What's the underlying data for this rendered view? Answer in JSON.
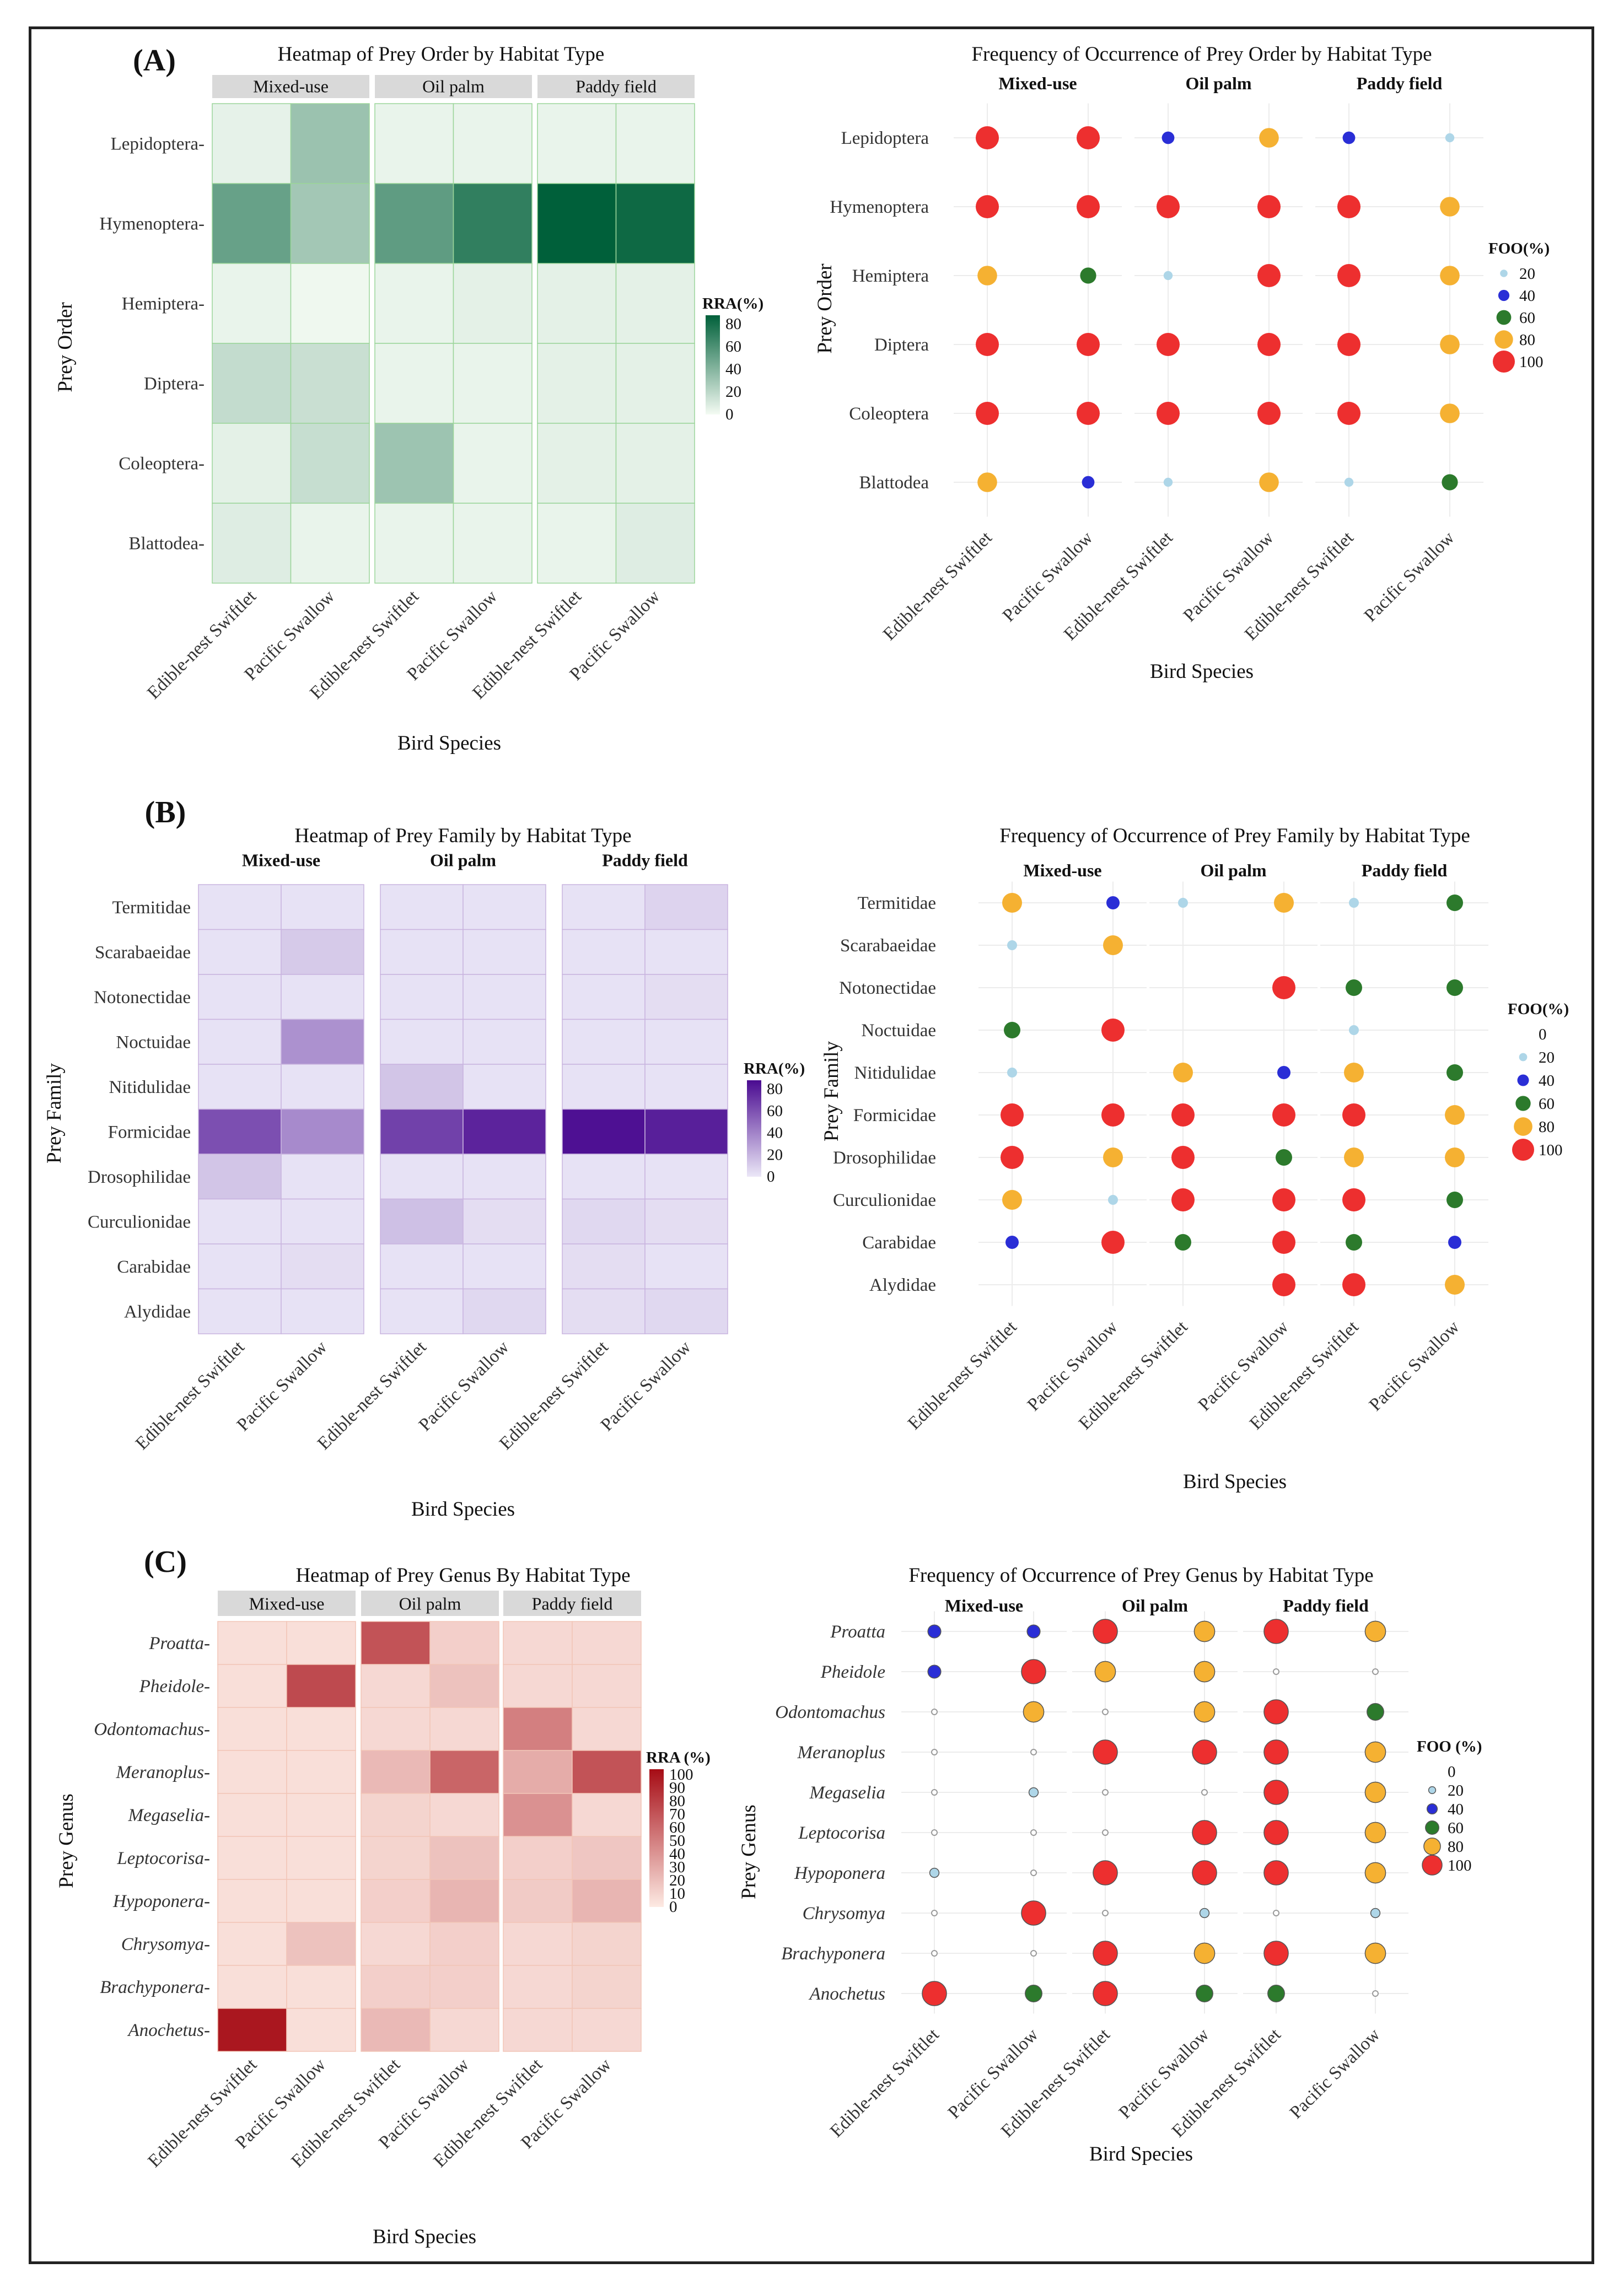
{
  "figure": {
    "panel_letters": [
      "(A)",
      "(B)",
      "(C)"
    ]
  },
  "colors": {
    "green_scale": [
      "#f4fbf3",
      "#00603a"
    ],
    "purple_scale": [
      "#ebe7f7",
      "#4a0b91"
    ],
    "red_scale": [
      "#fdeae3",
      "#a60c15"
    ],
    "foo_20": "#aed6e8",
    "foo_40": "#2a2ed6",
    "foo_60": "#2c7a2c",
    "foo_80": "#f5b132",
    "foo_100": "#ed2f2f"
  },
  "chart_data": [
    {
      "id": "heat-order",
      "type": "heatmap",
      "title": "Heatmap of Prey Order by Habitat Type",
      "xlabel": "Bird Species",
      "ylabel": "Prey Order",
      "legend_title": "RRA(%)",
      "legend_ticks": [
        "80",
        "60",
        "40",
        "20",
        "0"
      ],
      "value_range": [
        0,
        90
      ],
      "facets": [
        "Mixed-use",
        "Oil palm",
        "Paddy field"
      ],
      "species": [
        "Edible-nest Swiftlet",
        "Pacific Swallow"
      ],
      "categories": [
        "Lepidoptera",
        "Hymenoptera",
        "Hemiptera",
        "Diptera",
        "Coleoptera",
        "Blattodea"
      ],
      "values": [
        [
          5,
          33,
          4,
          4,
          4,
          4
        ],
        [
          52,
          30,
          55,
          72,
          90,
          85
        ],
        [
          4,
          2,
          4,
          6,
          6,
          6
        ],
        [
          18,
          16,
          4,
          4,
          6,
          6
        ],
        [
          6,
          17,
          32,
          4,
          6,
          6
        ],
        [
          8,
          4,
          4,
          4,
          4,
          8
        ]
      ]
    },
    {
      "id": "foo-order",
      "type": "scatter",
      "title": "Frequency of Occurrence of Prey Order by Habitat Type",
      "xlabel": "Bird Species",
      "ylabel": "Prey Order",
      "legend_title": "FOO(%)",
      "legend_levels": [
        "20",
        "40",
        "60",
        "80",
        "100"
      ],
      "facets": [
        "Mixed-use",
        "Oil palm",
        "Paddy field"
      ],
      "species": [
        "Edible-nest Swiftlet",
        "Pacific Swallow"
      ],
      "categories": [
        "Lepidoptera",
        "Hymenoptera",
        "Hemiptera",
        "Diptera",
        "Coleoptera",
        "Blattodea"
      ],
      "values": [
        [
          100,
          100,
          40,
          80,
          40,
          20
        ],
        [
          100,
          100,
          100,
          100,
          100,
          80
        ],
        [
          80,
          60,
          20,
          100,
          100,
          80
        ],
        [
          100,
          100,
          100,
          100,
          100,
          80
        ],
        [
          100,
          100,
          100,
          100,
          100,
          80
        ],
        [
          80,
          40,
          20,
          80,
          20,
          60
        ]
      ]
    },
    {
      "id": "heat-family",
      "type": "heatmap",
      "title": "Heatmap of Prey Family by Habitat Type",
      "xlabel": "Bird Species",
      "ylabel": "Prey Family",
      "legend_title": "RRA(%)",
      "legend_ticks": [
        "80",
        "60",
        "40",
        "20",
        "0"
      ],
      "value_range": [
        0,
        90
      ],
      "facets": [
        "Mixed-use",
        "Oil palm",
        "Paddy field"
      ],
      "species": [
        "Edible-nest Swiftlet",
        "Pacific Swallow"
      ],
      "categories": [
        "Termitidae",
        "Scarabaeidae",
        "Notonectidae",
        "Noctuidae",
        "Nitidulidae",
        "Formicidae",
        "Drosophilidae",
        "Curculionidae",
        "Carabidae",
        "Alydidae"
      ],
      "values": [
        [
          2,
          2,
          2,
          2,
          2,
          8
        ],
        [
          2,
          12,
          2,
          2,
          2,
          2
        ],
        [
          2,
          2,
          2,
          2,
          2,
          4
        ],
        [
          2,
          35,
          2,
          2,
          2,
          2
        ],
        [
          2,
          2,
          14,
          2,
          2,
          2
        ],
        [
          62,
          38,
          68,
          80,
          88,
          82
        ],
        [
          14,
          2,
          2,
          2,
          2,
          2
        ],
        [
          2,
          2,
          16,
          4,
          6,
          4
        ],
        [
          2,
          4,
          2,
          2,
          4,
          2
        ],
        [
          2,
          2,
          2,
          6,
          4,
          6
        ]
      ]
    },
    {
      "id": "foo-family",
      "type": "scatter",
      "title": "Frequency of Occurrence of Prey Family by Habitat Type",
      "xlabel": "Bird Species",
      "ylabel": "Prey Family",
      "legend_title": "FOO(%)",
      "legend_levels": [
        "0",
        "20",
        "40",
        "60",
        "80",
        "100"
      ],
      "facets": [
        "Mixed-use",
        "Oil palm",
        "Paddy field"
      ],
      "species": [
        "Edible-nest Swiftlet",
        "Pacific Swallow"
      ],
      "categories": [
        "Termitidae",
        "Scarabaeidae",
        "Notonectidae",
        "Noctuidae",
        "Nitidulidae",
        "Formicidae",
        "Drosophilidae",
        "Curculionidae",
        "Carabidae",
        "Alydidae"
      ],
      "values": [
        [
          80,
          40,
          20,
          80,
          20,
          60
        ],
        [
          20,
          80,
          0,
          0,
          0,
          0
        ],
        [
          0,
          0,
          0,
          100,
          60,
          60
        ],
        [
          60,
          100,
          0,
          0,
          20,
          0
        ],
        [
          20,
          0,
          80,
          40,
          80,
          60
        ],
        [
          100,
          100,
          100,
          100,
          100,
          80
        ],
        [
          100,
          80,
          100,
          60,
          80,
          80
        ],
        [
          80,
          20,
          100,
          100,
          100,
          60
        ],
        [
          40,
          100,
          60,
          100,
          60,
          40
        ],
        [
          0,
          0,
          0,
          100,
          100,
          80
        ]
      ]
    },
    {
      "id": "heat-genus",
      "type": "heatmap",
      "title": "Heatmap of Prey Genus By Habitat Type",
      "xlabel": "Bird Species",
      "ylabel": "Prey Genus",
      "legend_title": "RRA (%)",
      "legend_ticks": [
        "100",
        "90",
        "80",
        "70",
        "60",
        "50",
        "40",
        "30",
        "20",
        "10",
        "0"
      ],
      "value_range": [
        0,
        100
      ],
      "facets": [
        "Mixed-use",
        "Oil palm",
        "Paddy field"
      ],
      "species": [
        "Edible-nest Swiftlet",
        "Pacific Swallow"
      ],
      "categories": [
        "Proatta",
        "Pheidole",
        "Odontomachus",
        "Meranoplus",
        "Megaselia",
        "Leptocorisa",
        "Hypoponera",
        "Chrysomya",
        "Brachyponera",
        "Anochetus"
      ],
      "values": [
        [
          5,
          5,
          68,
          12,
          8,
          8
        ],
        [
          5,
          72,
          8,
          18,
          8,
          8
        ],
        [
          5,
          5,
          8,
          8,
          48,
          8
        ],
        [
          5,
          5,
          22,
          60,
          28,
          68
        ],
        [
          5,
          5,
          10,
          8,
          40,
          8
        ],
        [
          5,
          5,
          10,
          18,
          12,
          16
        ],
        [
          5,
          5,
          12,
          24,
          14,
          24
        ],
        [
          5,
          18,
          8,
          12,
          8,
          10
        ],
        [
          5,
          5,
          12,
          12,
          8,
          10
        ],
        [
          95,
          5,
          22,
          8,
          8,
          8
        ]
      ]
    },
    {
      "id": "foo-genus",
      "type": "scatter",
      "title": "Frequency of Occurrence of Prey Genus by Habitat Type",
      "xlabel": "Bird Species",
      "ylabel": "Prey Genus",
      "legend_title": "FOO (%)",
      "legend_levels": [
        "0",
        "20",
        "40",
        "60",
        "80",
        "100"
      ],
      "facets": [
        "Mixed-use",
        "Oil palm",
        "Paddy field"
      ],
      "species": [
        "Edible-nest Swiftlet",
        "Pacific Swallow"
      ],
      "categories": [
        "Proatta",
        "Pheidole",
        "Odontomachus",
        "Meranoplus",
        "Megaselia",
        "Leptocorisa",
        "Hypoponera",
        "Chrysomya",
        "Brachyponera",
        "Anochetus"
      ],
      "values": [
        [
          40,
          40,
          100,
          80,
          100,
          80
        ],
        [
          40,
          100,
          80,
          80,
          0,
          0
        ],
        [
          0,
          80,
          0,
          80,
          100,
          60
        ],
        [
          0,
          0,
          100,
          100,
          100,
          80
        ],
        [
          0,
          20,
          0,
          0,
          100,
          80
        ],
        [
          0,
          0,
          0,
          100,
          100,
          80
        ],
        [
          20,
          0,
          100,
          100,
          100,
          80
        ],
        [
          0,
          100,
          0,
          20,
          0,
          20
        ],
        [
          0,
          0,
          100,
          80,
          100,
          80
        ],
        [
          100,
          60,
          100,
          60,
          60,
          0
        ]
      ]
    }
  ]
}
